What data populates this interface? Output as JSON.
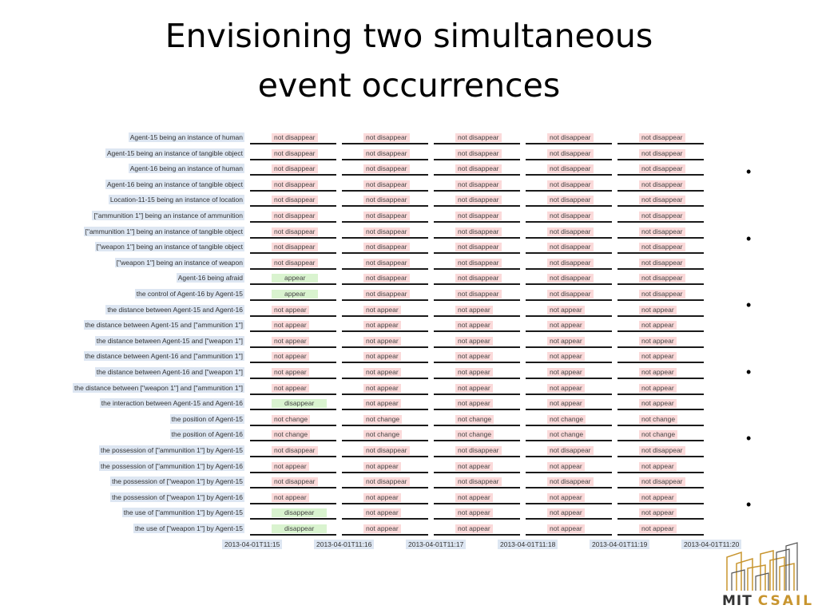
{
  "slide": {
    "title_lines": [
      "Envisioning two simultaneous",
      "event occurrences"
    ],
    "bullets": [
      "•",
      "•",
      "•",
      "•",
      "•",
      "•"
    ]
  },
  "timeline": {
    "times": [
      "2013-04-01T11:15",
      "2013-04-01T11:16",
      "2013-04-01T11:17",
      "2013-04-01T11:18",
      "2013-04-01T11:19",
      "2013-04-01T11:20"
    ],
    "rows": [
      {
        "label": "Agent-15 being an instance of human",
        "cells": [
          "not disappear",
          "not disappear",
          "not disappear",
          "not disappear",
          "not disappear"
        ]
      },
      {
        "label": "Agent-15 being an instance of tangible object",
        "cells": [
          "not disappear",
          "not disappear",
          "not disappear",
          "not disappear",
          "not disappear"
        ]
      },
      {
        "label": "Agent-16 being an instance of human",
        "cells": [
          "not disappear",
          "not disappear",
          "not disappear",
          "not disappear",
          "not disappear"
        ]
      },
      {
        "label": "Agent-16 being an instance of tangible object",
        "cells": [
          "not disappear",
          "not disappear",
          "not disappear",
          "not disappear",
          "not disappear"
        ]
      },
      {
        "label": "Location-11-15 being an instance of location",
        "cells": [
          "not disappear",
          "not disappear",
          "not disappear",
          "not disappear",
          "not disappear"
        ]
      },
      {
        "label": "[\"ammunition 1\"] being an instance of ammunition",
        "cells": [
          "not disappear",
          "not disappear",
          "not disappear",
          "not disappear",
          "not disappear"
        ]
      },
      {
        "label": "[\"ammunition 1\"] being an instance of tangible object",
        "cells": [
          "not disappear",
          "not disappear",
          "not disappear",
          "not disappear",
          "not disappear"
        ]
      },
      {
        "label": "[\"weapon 1\"] being an instance of tangible object",
        "cells": [
          "not disappear",
          "not disappear",
          "not disappear",
          "not disappear",
          "not disappear"
        ]
      },
      {
        "label": "[\"weapon 1\"] being an instance of weapon",
        "cells": [
          "not disappear",
          "not disappear",
          "not disappear",
          "not disappear",
          "not disappear"
        ]
      },
      {
        "label": "Agent-16 being afraid",
        "cells": [
          "appear",
          "not disappear",
          "not disappear",
          "not disappear",
          "not disappear"
        ]
      },
      {
        "label": "the control of Agent-16 by Agent-15",
        "cells": [
          "appear",
          "not disappear",
          "not disappear",
          "not disappear",
          "not disappear"
        ]
      },
      {
        "label": "the distance between Agent-15 and Agent-16",
        "cells": [
          "not appear",
          "not appear",
          "not appear",
          "not appear",
          "not appear"
        ]
      },
      {
        "label": "the distance between Agent-15 and [\"ammunition 1\"]",
        "cells": [
          "not appear",
          "not appear",
          "not appear",
          "not appear",
          "not appear"
        ]
      },
      {
        "label": "the distance between Agent-15 and [\"weapon 1\"]",
        "cells": [
          "not appear",
          "not appear",
          "not appear",
          "not appear",
          "not appear"
        ]
      },
      {
        "label": "the distance between Agent-16 and [\"ammunition 1\"]",
        "cells": [
          "not appear",
          "not appear",
          "not appear",
          "not appear",
          "not appear"
        ]
      },
      {
        "label": "the distance between Agent-16 and [\"weapon 1\"]",
        "cells": [
          "not appear",
          "not appear",
          "not appear",
          "not appear",
          "not appear"
        ]
      },
      {
        "label": "the distance between [\"weapon 1\"] and [\"ammunition 1\"]",
        "cells": [
          "not appear",
          "not appear",
          "not appear",
          "not appear",
          "not appear"
        ]
      },
      {
        "label": "the interaction between Agent-15 and Agent-16",
        "cells": [
          "disappear",
          "not appear",
          "not appear",
          "not appear",
          "not appear"
        ]
      },
      {
        "label": "the position of Agent-15",
        "cells": [
          "not change",
          "not change",
          "not change",
          "not change",
          "not change"
        ]
      },
      {
        "label": "the position of Agent-16",
        "cells": [
          "not change",
          "not change",
          "not change",
          "not change",
          "not change"
        ]
      },
      {
        "label": "the possession of [\"ammunition 1\"] by Agent-15",
        "cells": [
          "not disappear",
          "not disappear",
          "not disappear",
          "not disappear",
          "not disappear"
        ]
      },
      {
        "label": "the possession of [\"ammunition 1\"] by Agent-16",
        "cells": [
          "not appear",
          "not appear",
          "not appear",
          "not appear",
          "not appear"
        ]
      },
      {
        "label": "the possession of [\"weapon 1\"] by Agent-15",
        "cells": [
          "not disappear",
          "not disappear",
          "not disappear",
          "not disappear",
          "not disappear"
        ]
      },
      {
        "label": "the possession of [\"weapon 1\"] by Agent-16",
        "cells": [
          "not appear",
          "not appear",
          "not appear",
          "not appear",
          "not appear"
        ]
      },
      {
        "label": "the use of [\"ammunition 1\"] by Agent-15",
        "cells": [
          "disappear",
          "not appear",
          "not appear",
          "not appear",
          "not appear"
        ]
      },
      {
        "label": "the use of [\"weapon 1\"] by Agent-15",
        "cells": [
          "disappear",
          "not appear",
          "not appear",
          "not appear",
          "not appear"
        ]
      }
    ]
  },
  "colors": {
    "negative_cell": "#fbdada",
    "positive_cell": "#d9f3cf",
    "label_bg": "#dde6f2",
    "logo_gold": "#c8952f"
  },
  "logo": {
    "mit": "MIT",
    "csail": "CSAIL"
  }
}
